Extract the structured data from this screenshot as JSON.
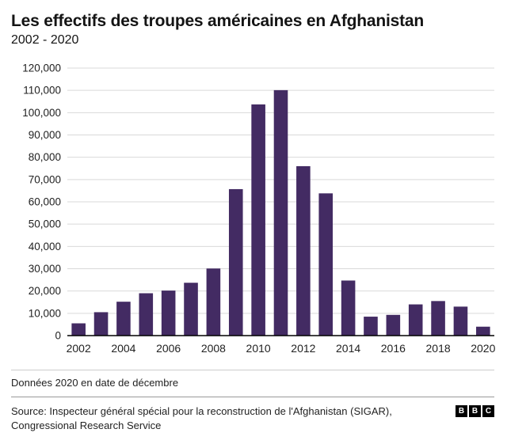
{
  "header": {
    "title": "Les effectifs des troupes américaines en Afghanistan",
    "subtitle": "2002 - 2020"
  },
  "chart_data": {
    "type": "bar",
    "title": "Les effectifs des troupes américaines en Afghanistan",
    "subtitle": "2002 - 2020",
    "categories": [
      2002,
      2003,
      2004,
      2005,
      2006,
      2007,
      2008,
      2009,
      2010,
      2011,
      2012,
      2013,
      2014,
      2015,
      2016,
      2017,
      2018,
      2019,
      2020
    ],
    "values": [
      5500,
      10500,
      15200,
      19000,
      20200,
      23700,
      30100,
      65700,
      103700,
      110100,
      76000,
      63800,
      24700,
      8500,
      9300,
      14000,
      15500,
      13000,
      4000
    ],
    "xlabel": "",
    "ylabel": "",
    "ylim": [
      0,
      120000
    ],
    "ytick_step": 10000,
    "xtick_labels": [
      "2002",
      "2004",
      "2006",
      "2008",
      "2010",
      "2012",
      "2014",
      "2016",
      "2018",
      "2020"
    ],
    "grid": true,
    "legend": false,
    "bar_color": "#432b63",
    "grid_color": "#d9d9d9",
    "axis_color": "#000000"
  },
  "footer": {
    "note": "Données 2020 en date de décembre",
    "source": "Source: Inspecteur général spécial pour la reconstruction de l'Afghanistan (SIGAR), Congressional Research Service",
    "logo": [
      "B",
      "B",
      "C"
    ]
  }
}
